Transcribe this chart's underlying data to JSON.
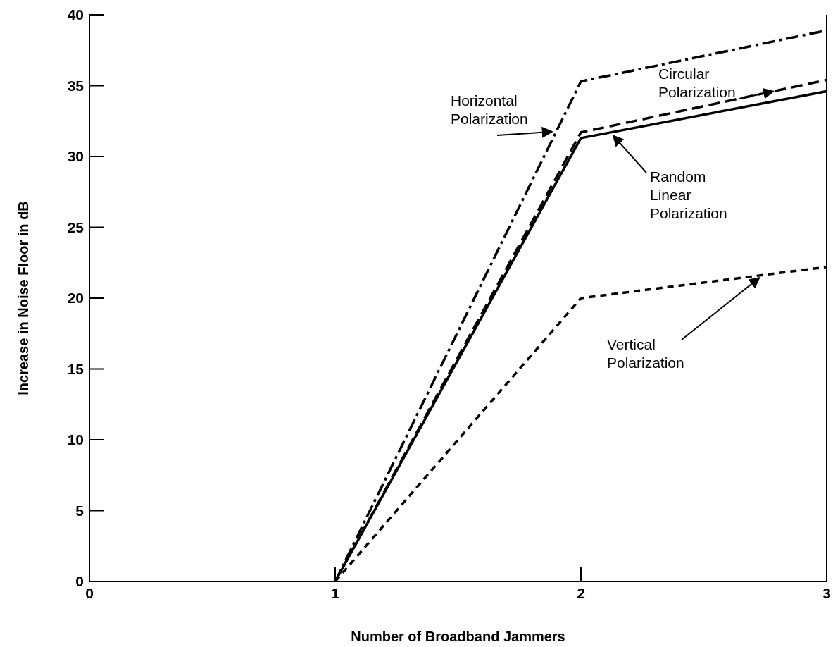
{
  "chart_data": {
    "type": "line",
    "xlabel": "Number of Broadband Jammers",
    "ylabel": "Increase in Noise Floor in dB",
    "x": [
      1,
      2,
      3
    ],
    "xlim": [
      0,
      3
    ],
    "xticks": [
      0,
      1,
      2,
      3
    ],
    "ylim": [
      0,
      40
    ],
    "yticks": [
      0,
      5,
      10,
      15,
      20,
      25,
      30,
      35,
      40
    ],
    "grid": false,
    "marker": "none",
    "series": [
      {
        "name": "Horizontal Polarization",
        "color": "#000000",
        "line_style": "dashdot",
        "values": [
          0,
          35.3,
          38.9
        ]
      },
      {
        "name": "Circular Polarization",
        "color": "#000000",
        "line_style": "dashed",
        "values": [
          0,
          31.7,
          35.4
        ]
      },
      {
        "name": "Random Linear Polarization",
        "color": "#000000",
        "line_style": "solid",
        "values": [
          0,
          31.3,
          34.6
        ]
      },
      {
        "name": "Vertical Polarization",
        "color": "#000000",
        "line_style": "dotted",
        "values": [
          0,
          20,
          22.2
        ]
      }
    ]
  }
}
